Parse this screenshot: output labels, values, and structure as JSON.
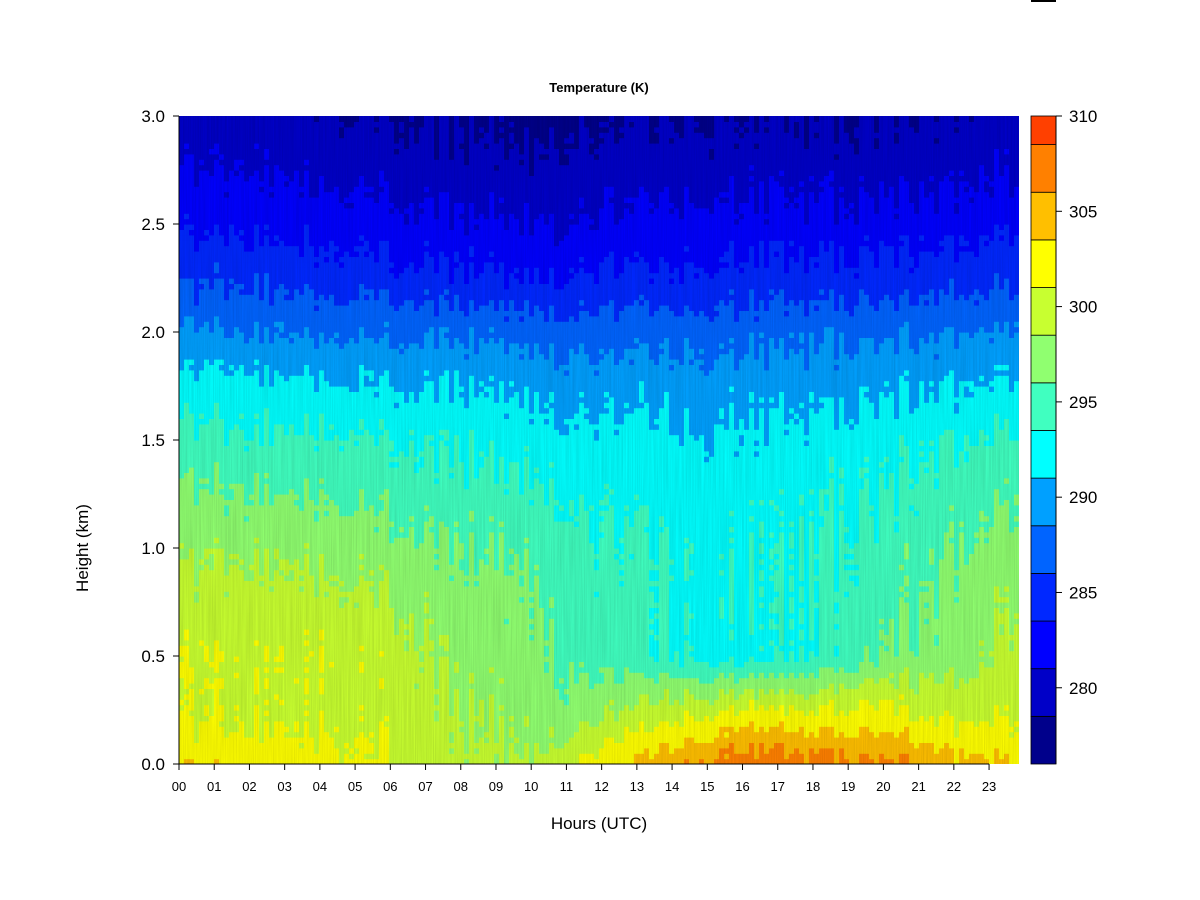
{
  "chart_data": {
    "type": "heatmap",
    "title": "Temperature (K)",
    "xlabel": "Hours (UTC)",
    "ylabel": "Height (km)",
    "x_ticks": [
      "00",
      "01",
      "02",
      "03",
      "04",
      "05",
      "06",
      "07",
      "08",
      "09",
      "10",
      "11",
      "12",
      "13",
      "14",
      "15",
      "16",
      "17",
      "18",
      "19",
      "20",
      "21",
      "22",
      "23"
    ],
    "xlim": [
      0,
      23.85
    ],
    "y_ticks": [
      "0.0",
      "0.5",
      "1.0",
      "1.5",
      "2.0",
      "2.5",
      "3.0"
    ],
    "ylim": [
      0,
      3.0
    ],
    "colorbar": {
      "range": [
        276,
        310
      ],
      "ticks": [
        "280",
        "285",
        "290",
        "295",
        "300",
        "305",
        "310"
      ],
      "levels": [
        276,
        278.5,
        281,
        283.5,
        286,
        288.5,
        291,
        293.5,
        296,
        298.5,
        301,
        303.5,
        306,
        308.5,
        311
      ],
      "colors": [
        "#00008b",
        "#0000c8",
        "#0000ff",
        "#0028ff",
        "#0064ff",
        "#00a0ff",
        "#00ffff",
        "#40ffc0",
        "#90ff70",
        "#c8ff30",
        "#ffff00",
        "#ffbf00",
        "#ff8000",
        "#ff4000",
        "#ff0000",
        "#c80000",
        "#800000"
      ]
    },
    "field_samples": {
      "hours": [
        0,
        2,
        4,
        6,
        8,
        10,
        11,
        12,
        14,
        16,
        18,
        20,
        22,
        23.8
      ],
      "heights_km": [
        0.0,
        0.1,
        0.25,
        0.5,
        0.75,
        1.0,
        1.25,
        1.5,
        1.75,
        2.0,
        2.25,
        2.5,
        2.75,
        3.0
      ],
      "temperature_K": [
        [
          303.5,
          302.5,
          302,
          301,
          299.5,
          298.5,
          300.5,
          302.5,
          305.5,
          307.5,
          307,
          306.5,
          305,
          303.5
        ],
        [
          302,
          301.5,
          301.5,
          300.5,
          299,
          298,
          299,
          300.5,
          303,
          305.5,
          305,
          304.5,
          303,
          302
        ],
        [
          300.5,
          300.5,
          300.5,
          300,
          298.5,
          297.5,
          297,
          298,
          300,
          301.5,
          301,
          301.5,
          300,
          300.5
        ],
        [
          301,
          300.5,
          301,
          300,
          297.5,
          297,
          295.5,
          295,
          293.5,
          292.5,
          293.5,
          296,
          297.5,
          299.5
        ],
        [
          299.5,
          299.5,
          299.5,
          298.5,
          297,
          296.5,
          295,
          294.5,
          293.5,
          293,
          293.5,
          295,
          297,
          298.5
        ],
        [
          298,
          298,
          298,
          297,
          296,
          295.5,
          294.5,
          294,
          293.5,
          293,
          293.5,
          294.5,
          296,
          297
        ],
        [
          296.5,
          296,
          296,
          295,
          294.5,
          294,
          293.5,
          293,
          292.5,
          292.5,
          293,
          293.5,
          295,
          296
        ],
        [
          294.5,
          294,
          294,
          293.5,
          293,
          292.5,
          292,
          292,
          291.5,
          291.5,
          292,
          292.5,
          293.5,
          294
        ],
        [
          292,
          292,
          291.5,
          291,
          291,
          290.5,
          290,
          290,
          290,
          290,
          290,
          290.5,
          291,
          291.5
        ],
        [
          289,
          288.5,
          288.5,
          288,
          288,
          287.5,
          287.5,
          287.5,
          287.5,
          287.5,
          288,
          288,
          288.5,
          289
        ],
        [
          285.5,
          285.5,
          285,
          284.5,
          284,
          283.5,
          283.5,
          284,
          284,
          284.5,
          284.5,
          284.5,
          285,
          285.5
        ],
        [
          283,
          283,
          282.5,
          282,
          281.5,
          281,
          281,
          281.5,
          282,
          282,
          282,
          282,
          282.5,
          283
        ],
        [
          281,
          281,
          280.5,
          280,
          279.5,
          279,
          279.5,
          279.5,
          280,
          280,
          280,
          280,
          280.5,
          281
        ],
        [
          279.5,
          279.5,
          279,
          278.5,
          278,
          277.5,
          278,
          278,
          278.5,
          278.5,
          278.5,
          278.5,
          279,
          279.5
        ]
      ]
    },
    "grid": false,
    "colorbar_position": "right"
  }
}
